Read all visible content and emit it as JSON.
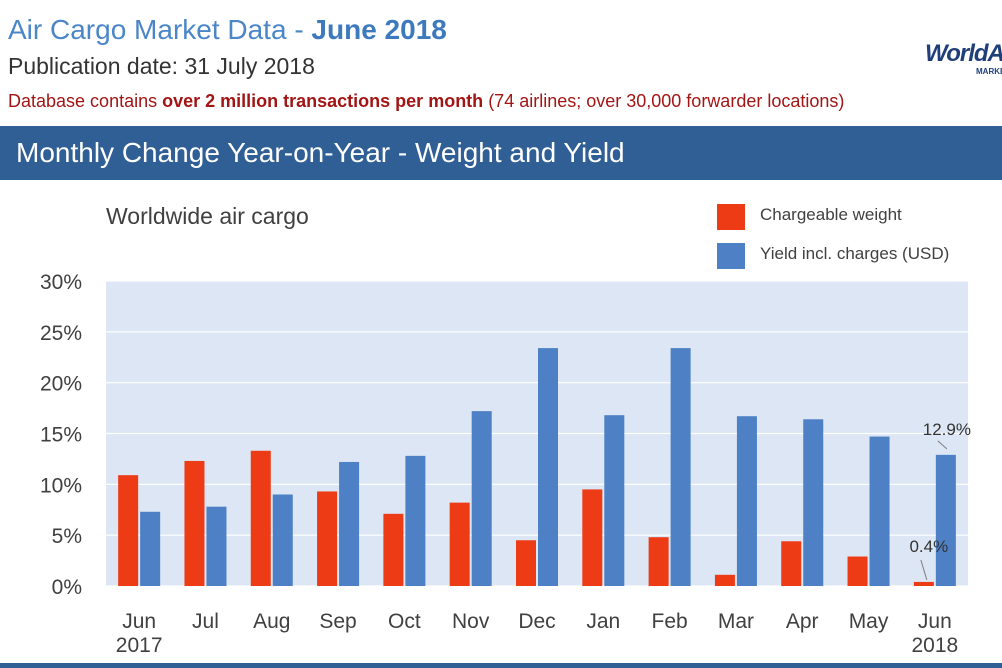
{
  "header": {
    "title_prefix": "Air Cargo Market Data - ",
    "title_month": "June 2018",
    "publication": "Publication date: 31 July 2018",
    "db_prefix": "Database contains ",
    "db_bold": "over 2 million transactions per month",
    "db_suffix": "  (74 airlines; over 30,000 forwarder locations)",
    "logo_text": "WorldA",
    "logo_sub": "MARKE"
  },
  "banner": {
    "text": "Monthly Change Year-on-Year - Weight and Yield"
  },
  "colors": {
    "weight": "#ed3b16",
    "yield": "#4d80c4",
    "plot_bg": "#dce6f4",
    "banner": "#2f5f95"
  },
  "chart_data": {
    "type": "bar",
    "title": "Worldwide air cargo",
    "categories": [
      "Jun",
      "Jul",
      "Aug",
      "Sep",
      "Oct",
      "Nov",
      "Dec",
      "Jan",
      "Feb",
      "Mar",
      "Apr",
      "May",
      "Jun"
    ],
    "category_sublabels": [
      "2017",
      "",
      "",
      "",
      "",
      "",
      "",
      "",
      "",
      "",
      "",
      "",
      "2018"
    ],
    "series": [
      {
        "name": "Chargeable weight",
        "values": [
          10.9,
          12.3,
          13.3,
          9.3,
          7.1,
          8.2,
          4.5,
          9.5,
          4.8,
          1.1,
          4.4,
          2.9,
          0.4
        ]
      },
      {
        "name": "Yield incl. charges (USD)",
        "values": [
          7.3,
          7.8,
          9.0,
          12.2,
          12.8,
          17.2,
          23.4,
          16.8,
          23.4,
          16.7,
          16.4,
          14.7,
          12.9
        ]
      }
    ],
    "ylim": [
      0,
      30
    ],
    "yticks": [
      "0%",
      "5%",
      "10%",
      "15%",
      "20%",
      "25%",
      "30%"
    ],
    "annotations": [
      "12.9%",
      "0.4%"
    ],
    "legend_position": "top-right",
    "grid": true
  }
}
